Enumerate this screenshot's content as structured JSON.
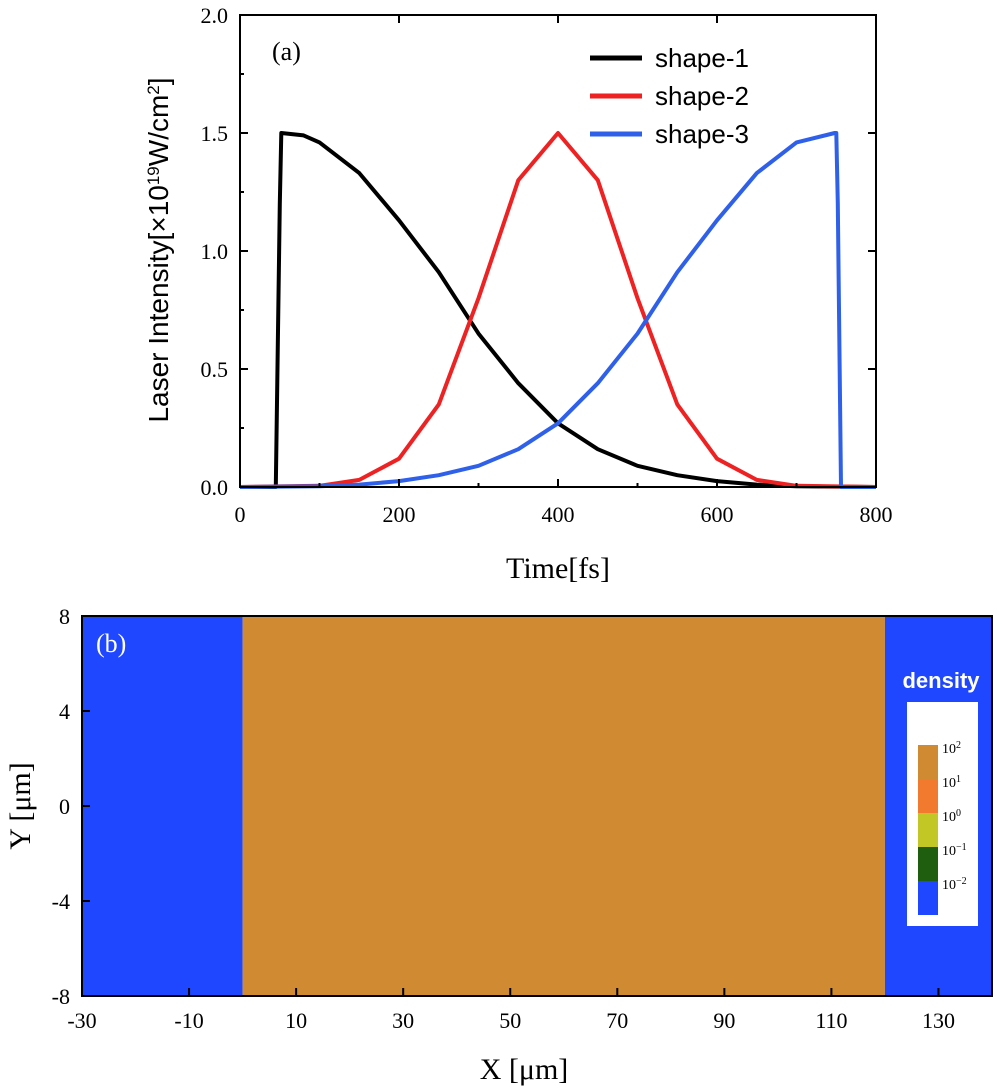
{
  "colors": {
    "shape1": "#000000",
    "shape2": "#ee2222",
    "shape3": "#2f60ea",
    "vacuum": "#1f47ff",
    "target": "#cf8a32",
    "cb_1e-2": "#1f47ff",
    "cb_1e-1": "#1f5e0f",
    "cb_1e0": "#c3c725",
    "cb_1e1": "#f27a2e",
    "cb_1e2": "#cf8a32"
  },
  "chart_data": [
    {
      "type": "line",
      "panel_label": "(a)",
      "xlabel": "Time[fs]",
      "ylabel_prefix": "Laser Intensity",
      "ylabel_unit_a": "[×10",
      "ylabel_unit_exp": "19",
      "ylabel_unit_b": "W/cm",
      "ylabel_unit_exp2": "2",
      "ylabel_unit_c": "]",
      "xlim": [
        0,
        800
      ],
      "ylim": [
        0,
        2.0
      ],
      "xticks": [
        "0",
        "200",
        "400",
        "600",
        "800"
      ],
      "yticks": [
        "0.0",
        "0.5",
        "1.0",
        "1.5",
        "2.0"
      ],
      "legend_position": "top-right",
      "grid": false,
      "series": [
        {
          "name": "shape-1",
          "x": [
            0,
            45,
            50,
            52,
            80,
            100,
            150,
            200,
            250,
            300,
            350,
            400,
            450,
            500,
            550,
            600,
            650,
            700,
            800
          ],
          "y": [
            0,
            0,
            1.2,
            1.5,
            1.49,
            1.46,
            1.33,
            1.13,
            0.91,
            0.65,
            0.44,
            0.27,
            0.16,
            0.09,
            0.05,
            0.025,
            0.01,
            0.003,
            0
          ]
        },
        {
          "name": "shape-2",
          "x": [
            0,
            100,
            150,
            200,
            250,
            300,
            350,
            400,
            450,
            500,
            550,
            600,
            650,
            700,
            800
          ],
          "y": [
            0,
            0.005,
            0.03,
            0.12,
            0.35,
            0.8,
            1.3,
            1.5,
            1.3,
            0.8,
            0.35,
            0.12,
            0.03,
            0.005,
            0
          ]
        },
        {
          "name": "shape-3",
          "x": [
            0,
            100,
            150,
            200,
            250,
            300,
            350,
            400,
            450,
            500,
            550,
            600,
            650,
            700,
            748,
            750,
            752,
            756,
            800
          ],
          "y": [
            0,
            0.003,
            0.01,
            0.025,
            0.05,
            0.09,
            0.16,
            0.27,
            0.44,
            0.65,
            0.91,
            1.13,
            1.33,
            1.46,
            1.5,
            1.5,
            1.2,
            0,
            0
          ]
        }
      ]
    },
    {
      "type": "heatmap",
      "panel_label": "(b)",
      "xlabel": "X [μm]",
      "ylabel": "Y [μm]",
      "xlim": [
        -30,
        140
      ],
      "ylim": [
        -8,
        8
      ],
      "xticks": [
        "-30",
        "-10",
        "10",
        "30",
        "50",
        "70",
        "90",
        "110",
        "130"
      ],
      "yticks": [
        "-8",
        "-4",
        "0",
        "4",
        "8"
      ],
      "regions": [
        {
          "x": [
            -30,
            0
          ],
          "y": [
            -8,
            8
          ],
          "level": "vacuum"
        },
        {
          "x": [
            0,
            120
          ],
          "y": [
            -8,
            8
          ],
          "level": "target"
        },
        {
          "x": [
            120,
            140
          ],
          "y": [
            -8,
            8
          ],
          "level": "vacuum"
        }
      ],
      "colorbar": {
        "title": "density",
        "position": "right",
        "levels": [
          {
            "base": "10",
            "exp": "2"
          },
          {
            "base": "10",
            "exp": "1"
          },
          {
            "base": "10",
            "exp": "0"
          },
          {
            "base": "10",
            "exp": "−1"
          },
          {
            "base": "10",
            "exp": "−2"
          }
        ]
      }
    }
  ]
}
